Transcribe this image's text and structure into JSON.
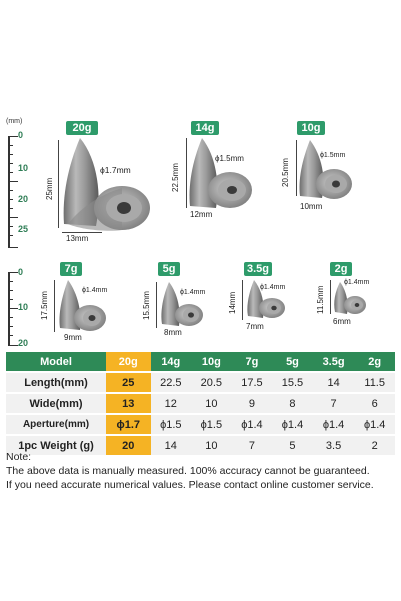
{
  "ruler_top": {
    "unit": "(mm)",
    "labels": [
      "0",
      "10",
      "20",
      "25"
    ]
  },
  "ruler_bottom": {
    "labels": [
      "0",
      "10",
      "20"
    ]
  },
  "weights": {
    "top": [
      {
        "badge": "20g",
        "length": "25mm",
        "width": "13mm",
        "aperture": "ϕ1.7mm"
      },
      {
        "badge": "14g",
        "length": "22.5mm",
        "width": "12mm",
        "aperture": "ϕ1.5mm"
      },
      {
        "badge": "10g",
        "length": "20.5mm",
        "width": "10mm",
        "aperture": "ϕ1.5mm"
      }
    ],
    "bottom": [
      {
        "badge": "7g",
        "length": "17.5mm",
        "width": "9mm",
        "aperture": "ϕ1.4mm"
      },
      {
        "badge": "5g",
        "length": "15.5mm",
        "width": "8mm",
        "aperture": "ϕ1.4mm"
      },
      {
        "badge": "3.5g",
        "length": "14mm",
        "width": "7mm",
        "aperture": "ϕ1.4mm"
      },
      {
        "badge": "2g",
        "length": "11.5mm",
        "width": "6mm",
        "aperture": "ϕ1.4mm"
      }
    ]
  },
  "table": {
    "header": [
      "Model",
      "20g",
      "14g",
      "10g",
      "7g",
      "5g",
      "3.5g",
      "2g"
    ],
    "rows": [
      {
        "label": "Length(mm)",
        "values": [
          "25",
          "22.5",
          "20.5",
          "17.5",
          "15.5",
          "14",
          "11.5"
        ]
      },
      {
        "label": "Wide(mm)",
        "values": [
          "13",
          "12",
          "10",
          "9",
          "8",
          "7",
          "6"
        ]
      },
      {
        "label": "Aperture(mm)",
        "values": [
          "ϕ1.7",
          "ϕ1.5",
          "ϕ1.5",
          "ϕ1.4",
          "ϕ1.4",
          "ϕ1.4",
          "ϕ1.4"
        ]
      },
      {
        "label": "1pc Weight (g)",
        "values": [
          "20",
          "14",
          "10",
          "7",
          "5",
          "3.5",
          "2"
        ]
      }
    ]
  },
  "notes": [
    "Note:",
    "The above data is manually measured. 100% accuracy cannot be guaranteed.",
    "If you need accurate numerical values. Please contact online customer service."
  ],
  "colors": {
    "accent_green": "#2e8a57",
    "highlight_orange": "#f5b324",
    "row_bg": "#f1f1f1"
  }
}
